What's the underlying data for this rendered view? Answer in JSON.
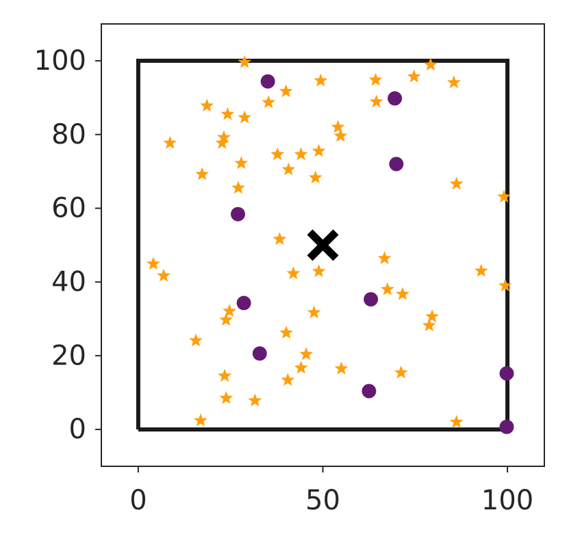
{
  "chart_data": {
    "type": "scatter",
    "xlim": [
      -10,
      110
    ],
    "ylim": [
      -10,
      110
    ],
    "xticks": [
      0,
      50,
      100
    ],
    "yticks": [
      0,
      20,
      40,
      60,
      80,
      100
    ],
    "grid": false,
    "series": [
      {
        "marker": "line",
        "color": "#1a1a1a",
        "x": [
          0,
          100,
          100,
          0,
          0
        ],
        "values": [
          0,
          0,
          100,
          100,
          0
        ]
      },
      {
        "marker": "star",
        "color": "#ff9e0d",
        "x": [
          28.8,
          18.6,
          24.2,
          28.8,
          35.3,
          40.0,
          49.4,
          64.3,
          74.7,
          79.2,
          85.5,
          64.5,
          8.6,
          23.2,
          22.7,
          27.9,
          17.3,
          27.1,
          37.7,
          44.1,
          48.9,
          40.7,
          48.0,
          54.1,
          54.8,
          86.2,
          99.1,
          38.3,
          4.1,
          6.9,
          42.0,
          48.9,
          66.7,
          92.9,
          99.4,
          67.5,
          71.6,
          24.7,
          23.8,
          47.6,
          79.6,
          78.8,
          15.6,
          40.1,
          45.5,
          44.1,
          40.5,
          55.0,
          71.2,
          23.4,
          23.8,
          31.6,
          16.9,
          86.2
        ],
        "values": [
          99.6,
          87.8,
          85.5,
          84.6,
          88.7,
          91.7,
          94.6,
          94.8,
          95.7,
          98.9,
          94.1,
          88.9,
          77.7,
          79.2,
          77.7,
          72.2,
          69.2,
          65.5,
          74.6,
          74.6,
          75.5,
          70.5,
          68.3,
          82.0,
          79.6,
          66.6,
          63.1,
          51.6,
          44.9,
          41.7,
          42.3,
          42.9,
          46.4,
          43.0,
          39.0,
          38.0,
          36.7,
          32.1,
          29.7,
          31.7,
          30.6,
          28.2,
          24.1,
          26.2,
          20.4,
          16.7,
          13.4,
          16.5,
          15.4,
          14.5,
          8.5,
          7.8,
          2.4,
          2.0
        ]
      },
      {
        "marker": "circle",
        "color": "#641a73",
        "x": [
          35.1,
          69.5,
          69.9,
          27.0,
          28.6,
          63.0,
          32.9,
          62.5,
          99.8,
          99.8
        ],
        "values": [
          94.4,
          89.8,
          72.0,
          58.4,
          34.3,
          35.3,
          20.6,
          10.4,
          15.2,
          0.7
        ]
      },
      {
        "marker": "x",
        "color": "#000000",
        "x": [
          50
        ],
        "values": [
          50
        ]
      }
    ]
  }
}
